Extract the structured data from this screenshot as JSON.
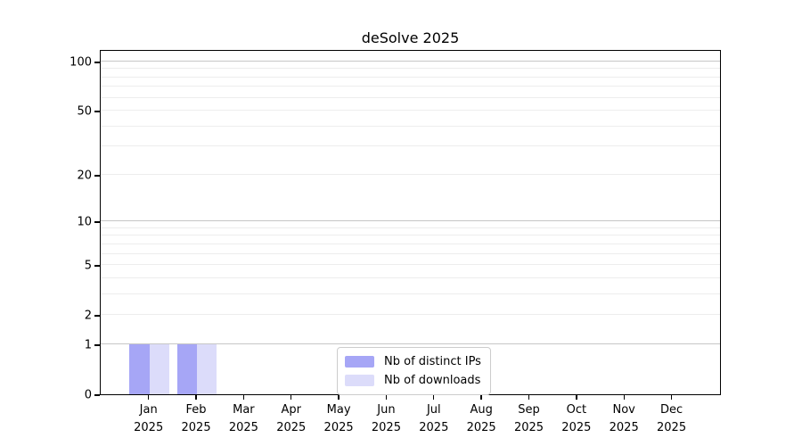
{
  "chart_data": {
    "type": "bar",
    "title": "deSolve 2025",
    "categories": [
      "Jan",
      "Feb",
      "Mar",
      "Apr",
      "May",
      "Jun",
      "Jul",
      "Aug",
      "Sep",
      "Oct",
      "Nov",
      "Dec"
    ],
    "year": "2025",
    "series": [
      {
        "name": "Nb of distinct IPs",
        "color": "#a6a6f6",
        "values": [
          1,
          1,
          0,
          0,
          0,
          0,
          0,
          0,
          0,
          0,
          0,
          0
        ]
      },
      {
        "name": "Nb of downloads",
        "color": "#dcdcfa",
        "values": [
          1,
          1,
          0,
          0,
          0,
          0,
          0,
          0,
          0,
          0,
          0,
          0
        ]
      }
    ],
    "yscale": "log1p",
    "ylim": [
      0,
      119
    ],
    "ytick_labels": [
      100,
      50,
      20,
      10,
      5,
      2,
      1,
      0
    ],
    "grid_major": [
      1,
      10,
      100
    ],
    "grid_minor": [
      2,
      3,
      4,
      5,
      6,
      7,
      8,
      9,
      20,
      30,
      40,
      50,
      60,
      70,
      80,
      90
    ],
    "legend_position": "lower center",
    "colors": {
      "grid_major": "#c6c6c6",
      "grid_minor": "#ededed",
      "axis": "#000000",
      "legend_border": "#cccccc"
    }
  }
}
